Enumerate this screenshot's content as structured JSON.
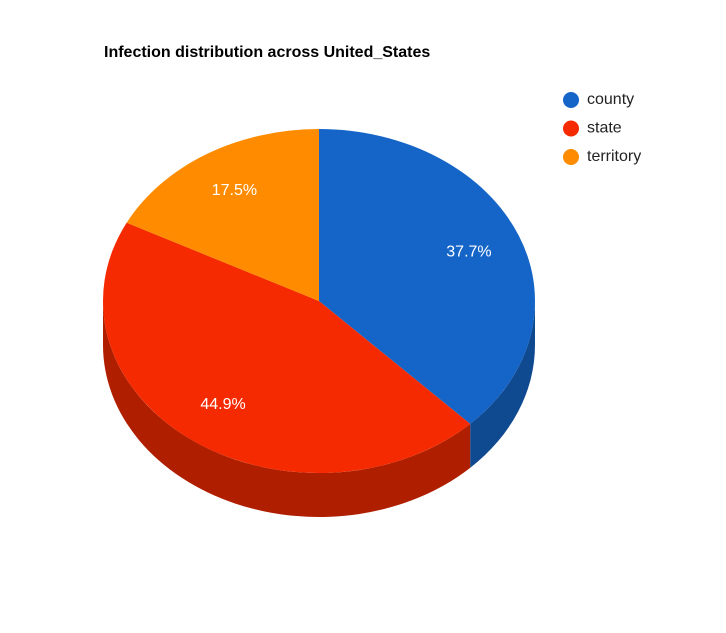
{
  "chart_data": {
    "type": "pie",
    "title": "Infection distribution across United_States",
    "categories": [
      "county",
      "state",
      "territory"
    ],
    "values": [
      37.7,
      44.9,
      17.5
    ],
    "value_labels": [
      "37.7%",
      "44.9%",
      "17.5%"
    ],
    "colors": [
      "#1565c8",
      "#f52a00",
      "#ff8c00"
    ],
    "legend": "right"
  }
}
